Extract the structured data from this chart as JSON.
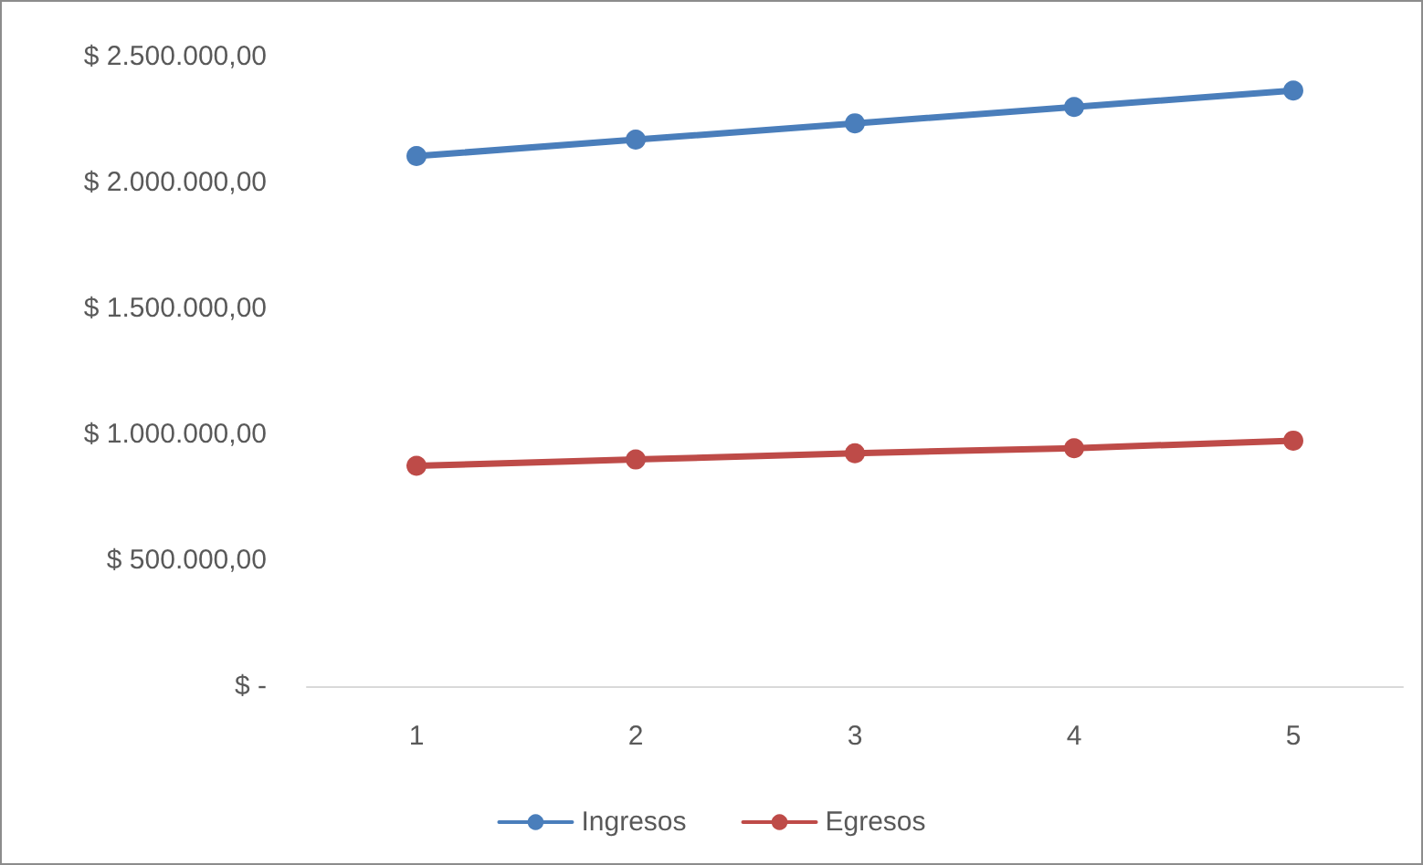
{
  "chart_data": {
    "type": "line",
    "categories": [
      "1",
      "2",
      "3",
      "4",
      "5"
    ],
    "series": [
      {
        "name": "Ingresos",
        "color": "#4a7ebb",
        "values": [
          2105000,
          2170000,
          2235000,
          2300000,
          2365000
        ]
      },
      {
        "name": "Egresos",
        "color": "#be4b48",
        "values": [
          875000,
          900000,
          925000,
          945000,
          975000
        ]
      }
    ],
    "ylim": [
      0,
      2500000
    ],
    "yticks": [
      {
        "value": 0,
        "label": "$ -"
      },
      {
        "value": 500000,
        "label": "$ 500.000,00"
      },
      {
        "value": 1000000,
        "label": "$ 1.000.000,00"
      },
      {
        "value": 1500000,
        "label": "$ 1.500.000,00"
      },
      {
        "value": 2000000,
        "label": "$ 2.000.000,00"
      },
      {
        "value": 2500000,
        "label": "$ 2.500.000,00"
      }
    ],
    "grid": false,
    "legend": "bottom",
    "marker": "circle",
    "line_style": "solid"
  }
}
